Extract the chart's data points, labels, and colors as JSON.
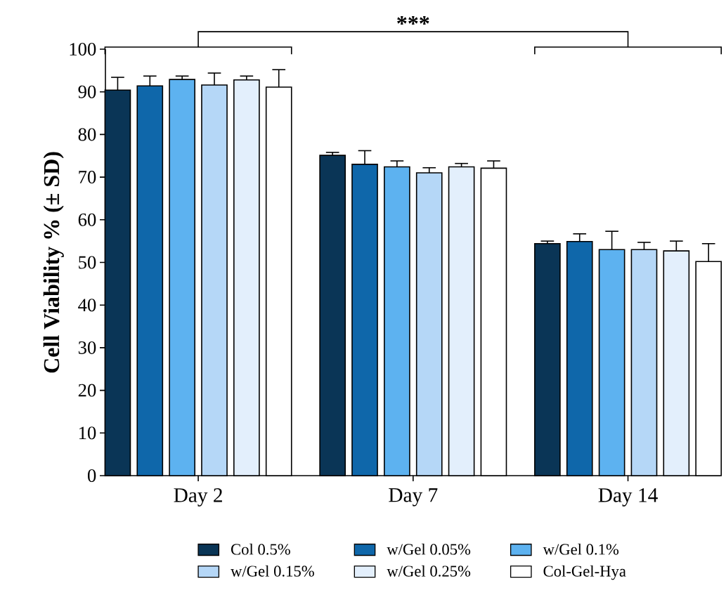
{
  "chart_data": {
    "type": "bar",
    "ylabel": "Cell Viability % (± SD)",
    "categories": [
      "Day 2",
      "Day 7",
      "Day 14"
    ],
    "series": [
      {
        "name": "Col 0.5%",
        "color": "#0a3556",
        "values": [
          90.4,
          75.1,
          54.4
        ],
        "errors": [
          3.0,
          0.7,
          0.6
        ]
      },
      {
        "name": "w/Gel 0.05%",
        "color": "#0f67aa",
        "values": [
          91.4,
          73.0,
          54.9
        ],
        "errors": [
          2.3,
          3.2,
          1.8
        ]
      },
      {
        "name": "w/Gel 0.1%",
        "color": "#5db2f0",
        "values": [
          92.9,
          72.4,
          53.0
        ],
        "errors": [
          0.8,
          1.4,
          4.3
        ]
      },
      {
        "name": "w/Gel 0.15%",
        "color": "#b5d7f7",
        "values": [
          91.6,
          71.0,
          53.0
        ],
        "errors": [
          2.8,
          1.2,
          1.7
        ]
      },
      {
        "name": "w/Gel 0.25%",
        "color": "#e3effc",
        "values": [
          92.8,
          72.4,
          52.7
        ],
        "errors": [
          0.9,
          0.8,
          2.3
        ]
      },
      {
        "name": "Col-Gel-Hya",
        "color": "#ffffff",
        "values": [
          91.1,
          72.1,
          50.2
        ],
        "errors": [
          4.1,
          1.7,
          4.2
        ]
      }
    ],
    "ylim": [
      0,
      100
    ],
    "yticks": [
      0,
      10,
      20,
      30,
      40,
      50,
      60,
      70,
      80,
      90,
      100
    ],
    "grid": false,
    "legend": "bottom",
    "annotations": [
      "***"
    ]
  }
}
